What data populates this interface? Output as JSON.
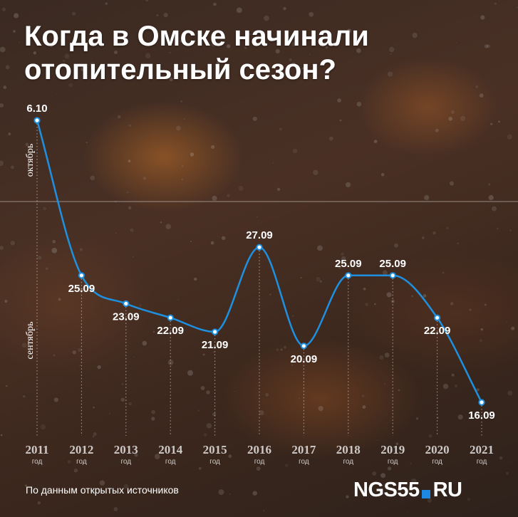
{
  "title_line1": "Когда в Омске начинали",
  "title_line2": "отопительный сезон?",
  "source_text": "По данным открытых источников",
  "logo": {
    "main": "NGS55",
    "suffix": "RU"
  },
  "colors": {
    "line": "#1e90e0",
    "marker_fill": "#ffffff",
    "logo_square": "#1e88e5"
  },
  "chart_data": {
    "type": "line",
    "x": [
      2011,
      2012,
      2013,
      2014,
      2015,
      2016,
      2017,
      2018,
      2019,
      2020,
      2021
    ],
    "x_sublabel": "год",
    "y_day_index": [
      36,
      25,
      23,
      22,
      21,
      27,
      20,
      25,
      25,
      22,
      16
    ],
    "data_labels": [
      "6.10",
      "25.09",
      "23.09",
      "22.09",
      "21.09",
      "27.09",
      "20.09",
      "25.09",
      "25.09",
      "22.09",
      "16.09"
    ],
    "y_bands": [
      "октябрь",
      "сентябрь"
    ],
    "grid": "vertical dotted lines at each year; horizontal line at month boundary",
    "smooth": true
  }
}
